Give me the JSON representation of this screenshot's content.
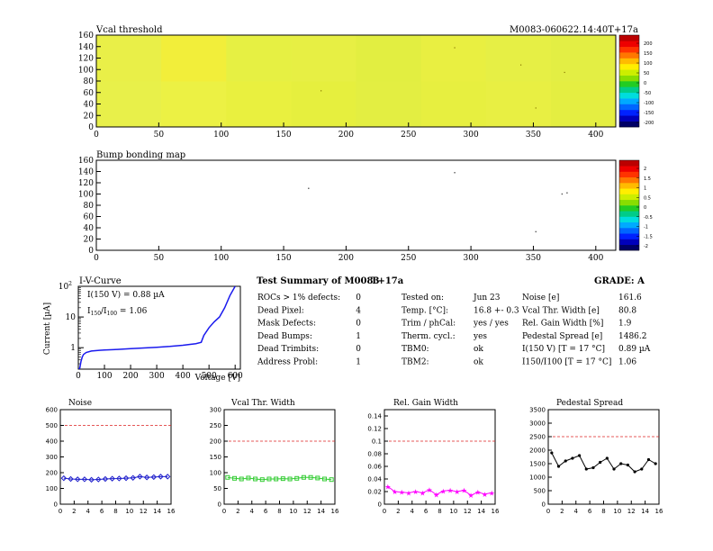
{
  "header": {
    "vcal_title": "Vcal threshold",
    "module_id": "M0083-060622.14:40T+17a",
    "bump_title": "Bump bonding map"
  },
  "maps": {
    "x_ticks": [
      "0",
      "50",
      "100",
      "150",
      "200",
      "250",
      "300",
      "350",
      "400"
    ],
    "y_ticks": [
      "0",
      "20",
      "40",
      "60",
      "80",
      "100",
      "120",
      "140",
      "160"
    ],
    "vcal_palette_labels": [
      "200",
      "150",
      "100",
      "50",
      "0",
      "-50",
      "-100",
      "-150",
      "-200"
    ],
    "bump_palette_labels": [
      "2",
      "1.5",
      "1",
      "0.5",
      "0",
      "-0.5",
      "-1",
      "-1.5",
      "-2"
    ]
  },
  "iv": {
    "title": "I-V-Curve",
    "ylabel": "Current [µA]",
    "xlabel": "Voltage [V]",
    "annot1": "I(150 V) = 0.88 µA",
    "annot2_pre": "I",
    "annot2_s1": "150",
    "annot2_mid": "/I",
    "annot2_s2": "100",
    "annot2_post": " = 1.06",
    "x_ticks": [
      "0",
      "100",
      "200",
      "300",
      "400",
      "500",
      "600"
    ],
    "y_ticks": [
      "1",
      "10",
      "10"
    ],
    "y_exp": "2"
  },
  "summary": {
    "title": "Test Summary of M0083",
    "subtitle": "T+17a",
    "grade": "GRADE:  A",
    "left": [
      {
        "label": "ROCs > 1% defects:",
        "value": "0"
      },
      {
        "label": "Dead Pixel:",
        "value": "4"
      },
      {
        "label": "Mask Defects:",
        "value": "0"
      },
      {
        "label": "Dead Bumps:",
        "value": "1"
      },
      {
        "label": "Dead Trimbits:",
        "value": "0"
      },
      {
        "label": "Address Probl:",
        "value": "1"
      }
    ],
    "mid": [
      {
        "label": "Tested on:",
        "value": "Jun 23"
      },
      {
        "label": "Temp. [°C]:",
        "value": "16.8 +- 0.3"
      },
      {
        "label": "Trim / phCal:",
        "value": "yes / yes"
      },
      {
        "label": "Therm. cycl.:",
        "value": "yes"
      },
      {
        "label": "TBM0:",
        "value": "ok"
      },
      {
        "label": "TBM2:",
        "value": "ok"
      }
    ],
    "right": [
      {
        "label": "Noise [e]",
        "value": "161.6"
      },
      {
        "label": "Vcal Thr. Width [e]",
        "value": "80.8"
      },
      {
        "label": "Rel. Gain Width [%]",
        "value": "1.9"
      },
      {
        "label": "Pedestal Spread [e]",
        "value": "1486.2"
      },
      {
        "label": "I(150 V) [T = 17 °C]",
        "value": "0.89 µA"
      },
      {
        "label": "I150/I100  [T = 17 °C]",
        "value": "1.06"
      }
    ]
  },
  "colors": {
    "noise": "#2020cc",
    "width": "#33cc33",
    "gain": "#ff00ff",
    "pedestal": "#000000",
    "limit": "#dd2222",
    "map_fill": "#e6f53c"
  },
  "chart_data": [
    {
      "type": "heatmap",
      "title": "Vcal threshold",
      "x_range": [
        0,
        416
      ],
      "y_range": [
        0,
        160
      ],
      "z_range": [
        -200,
        200
      ],
      "description_values": "nearly uniform threshold, ROC blocks 52x80"
    },
    {
      "type": "heatmap",
      "title": "Bump bonding map",
      "x_range": [
        0,
        416
      ],
      "y_range": [
        0,
        160
      ],
      "z_range": [
        -2,
        2
      ],
      "points": [
        {
          "x": 287,
          "y": 138
        },
        {
          "x": 170,
          "y": 110
        },
        {
          "x": 373,
          "y": 100
        },
        {
          "x": 377,
          "y": 102
        },
        {
          "x": 352,
          "y": 33
        }
      ]
    },
    {
      "type": "line",
      "title": "I-V-Curve",
      "xlabel": "Voltage [V]",
      "ylabel": "Current [µA]",
      "y_log": true,
      "xlim": [
        0,
        620
      ],
      "ylim": [
        0.1,
        100
      ],
      "x": [
        0,
        3,
        6,
        10,
        15,
        20,
        30,
        50,
        80,
        100,
        150,
        200,
        250,
        300,
        350,
        400,
        450,
        470,
        480,
        500,
        520,
        540,
        560,
        580,
        600
      ],
      "y": [
        0.1,
        0.15,
        0.22,
        0.35,
        0.5,
        0.6,
        0.7,
        0.78,
        0.82,
        0.84,
        0.88,
        0.93,
        0.98,
        1.03,
        1.1,
        1.2,
        1.35,
        1.5,
        2.5,
        4.5,
        7,
        10,
        20,
        50,
        100
      ]
    },
    {
      "type": "line",
      "title": "Noise",
      "xlim": [
        0,
        16
      ],
      "ylim": [
        0,
        600
      ],
      "limit": 500,
      "x": [
        0,
        1,
        2,
        3,
        4,
        5,
        6,
        7,
        8,
        9,
        10,
        11,
        12,
        13,
        14,
        15
      ],
      "y": [
        165,
        160,
        158,
        158,
        155,
        157,
        160,
        162,
        163,
        165,
        167,
        175,
        170,
        172,
        175,
        175
      ]
    },
    {
      "type": "line",
      "title": "Vcal Thr. Width",
      "xlim": [
        0,
        16
      ],
      "ylim": [
        0,
        300
      ],
      "limit": 200,
      "x": [
        0,
        1,
        2,
        3,
        4,
        5,
        6,
        7,
        8,
        9,
        10,
        11,
        12,
        13,
        14,
        15
      ],
      "y": [
        85,
        82,
        80,
        83,
        80,
        78,
        80,
        80,
        81,
        80,
        82,
        85,
        85,
        83,
        80,
        78
      ]
    },
    {
      "type": "line",
      "title": "Rel. Gain Width",
      "xlim": [
        0,
        16
      ],
      "ylim": [
        0,
        0.15
      ],
      "limit": 0.1,
      "x": [
        0,
        1,
        2,
        3,
        4,
        5,
        6,
        7,
        8,
        9,
        10,
        11,
        12,
        13,
        14,
        15
      ],
      "y": [
        0.028,
        0.02,
        0.019,
        0.018,
        0.02,
        0.018,
        0.023,
        0.015,
        0.021,
        0.022,
        0.02,
        0.022,
        0.014,
        0.019,
        0.016,
        0.018
      ]
    },
    {
      "type": "line",
      "title": "Pedestal Spread",
      "xlim": [
        0,
        16
      ],
      "ylim": [
        0,
        3500
      ],
      "limit": 2500,
      "x": [
        0,
        1,
        2,
        3,
        4,
        5,
        6,
        7,
        8,
        9,
        10,
        11,
        12,
        13,
        14,
        15
      ],
      "y": [
        1900,
        1400,
        1600,
        1700,
        1800,
        1300,
        1350,
        1550,
        1700,
        1300,
        1500,
        1450,
        1200,
        1300,
        1650,
        1500
      ]
    }
  ],
  "small_plots": {
    "x_ticks": [
      "0",
      "2",
      "4",
      "6",
      "8",
      "10",
      "12",
      "14",
      "16"
    ],
    "noise_y": [
      "0",
      "100",
      "200",
      "300",
      "400",
      "500",
      "600"
    ],
    "width_y": [
      "0",
      "50",
      "100",
      "150",
      "200",
      "250",
      "300"
    ],
    "gain_y": [
      "0",
      "0.02",
      "0.04",
      "0.06",
      "0.08",
      "0.1",
      "0.12",
      "0.14"
    ],
    "ped_y": [
      "0",
      "500",
      "1000",
      "1500",
      "2000",
      "2500",
      "3000",
      "3500"
    ]
  }
}
